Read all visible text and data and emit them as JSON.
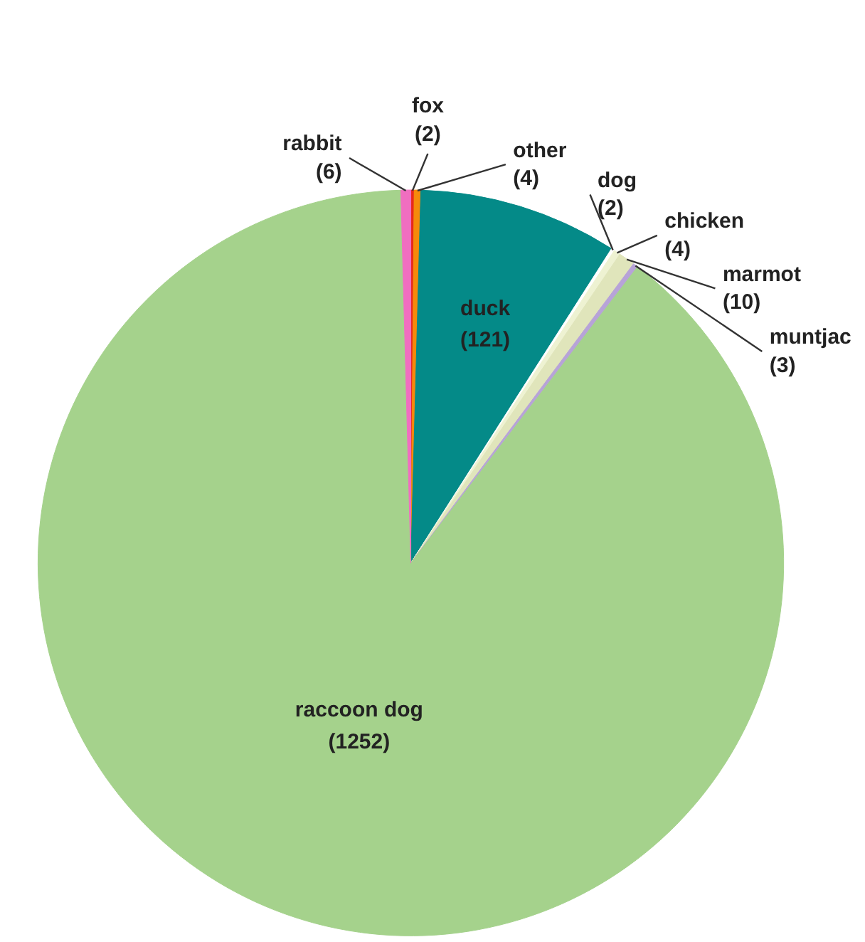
{
  "chart_data": {
    "type": "pie",
    "categories": [
      "fox",
      "other",
      "duck",
      "dog",
      "chicken",
      "marmot",
      "muntjac",
      "raccoon dog",
      "rabbit"
    ],
    "values": [
      2,
      4,
      121,
      2,
      4,
      10,
      3,
      1252,
      6
    ],
    "colors": [
      "#e8291c",
      "#f58a0b",
      "#048a88",
      "#ffffff",
      "#eef2d2",
      "#e0e5bb",
      "#b7a3d8",
      "#a5d28c",
      "#f06ec0"
    ],
    "value_labels": [
      "(2)",
      "(4)",
      "(121)",
      "(2)",
      "(4)",
      "(10)",
      "(3)",
      "(1252)",
      "(6)"
    ]
  }
}
